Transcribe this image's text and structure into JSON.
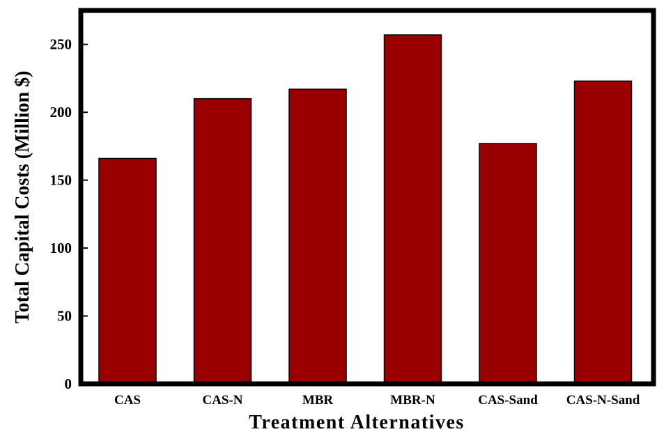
{
  "chart_data": {
    "type": "bar",
    "title": "",
    "xlabel": "Treatment Alternatives",
    "ylabel": "Total Capital Costs (Million $)",
    "categories": [
      "CAS",
      "CAS-N",
      "MBR",
      "MBR-N",
      "CAS-Sand",
      "CAS-N-Sand"
    ],
    "values": [
      166,
      210,
      217,
      257,
      177,
      223
    ],
    "ylim": [
      0,
      275
    ],
    "yticks": [
      0,
      50,
      100,
      150,
      200,
      250
    ],
    "grid": false,
    "legend": "none",
    "bar_color": "#990000",
    "bar_edge_color": "#000000"
  }
}
